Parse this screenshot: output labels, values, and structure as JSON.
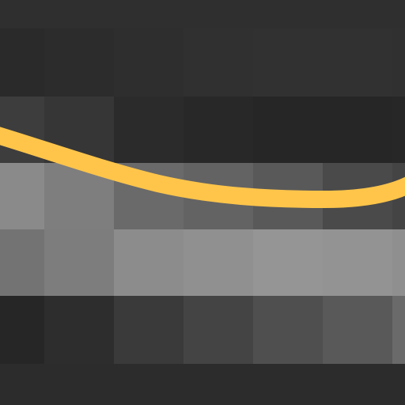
{
  "curve": {
    "color": "#ffc54a"
  }
}
